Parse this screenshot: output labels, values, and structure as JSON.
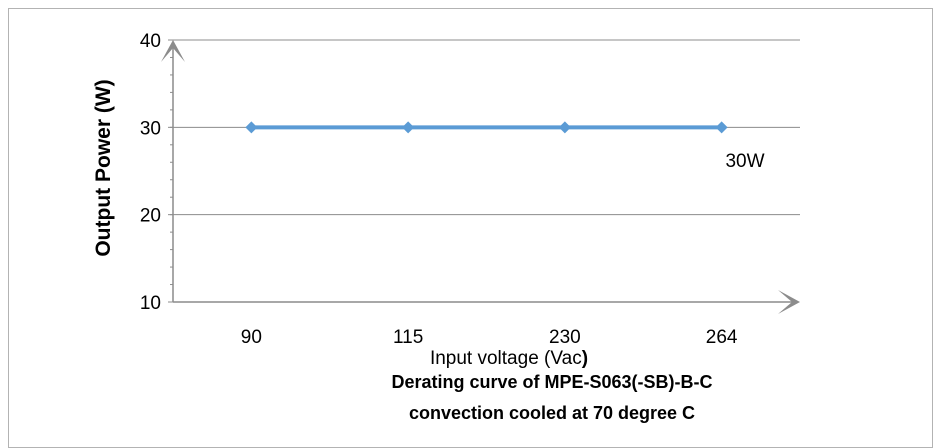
{
  "chart_data": {
    "type": "line",
    "categories": [
      "90",
      "115",
      "230",
      "264"
    ],
    "series": [
      {
        "values": [
          30,
          30,
          30,
          30
        ],
        "color": "#5b9bd5"
      }
    ],
    "ylim": [
      10,
      40
    ],
    "yticks": [
      10,
      20,
      30,
      40
    ],
    "ylabel": "Output Power (W)",
    "xlabel_main": "Input voltage (Vac",
    "xlabel_paren": ")",
    "title_line1": "Derating curve of MPE-S063(-SB)-B-C",
    "title_line2": "convection cooled at 70 degree C",
    "data_label": "30W",
    "grid": true,
    "gridline_color": "#8c8c8c",
    "axis_color": "#8c8c8c"
  }
}
